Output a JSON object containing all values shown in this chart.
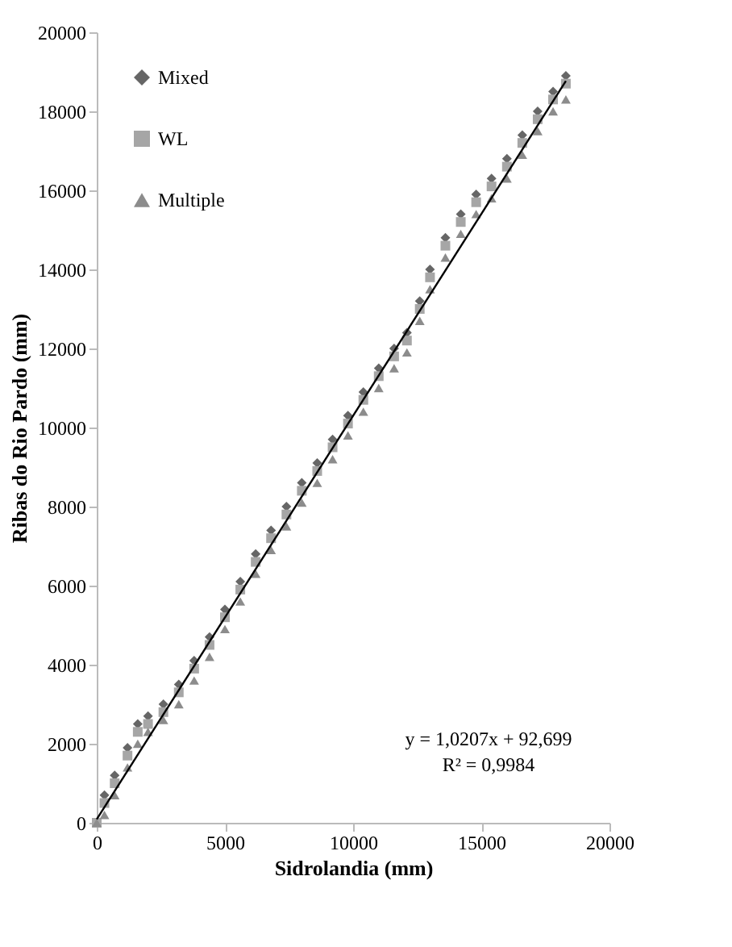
{
  "chart_data": {
    "type": "scatter",
    "xlabel": "Sidrolandia (mm)",
    "ylabel": "Ribas do Rio Pardo (mm)",
    "x": [
      0,
      300,
      700,
      1200,
      1600,
      2000,
      2600,
      3200,
      3800,
      4400,
      5000,
      5600,
      6200,
      6800,
      7400,
      8000,
      8600,
      9200,
      9800,
      10400,
      11000,
      11600,
      12100,
      12600,
      13000,
      13600,
      14200,
      14800,
      15400,
      16000,
      16600,
      17200,
      17800,
      18300
    ],
    "series": [
      {
        "name": "Mixed",
        "color": "#666666",
        "marker": "diamond",
        "values": [
          null,
          700,
          1200,
          1900,
          2500,
          2700,
          3000,
          3500,
          4100,
          4700,
          5400,
          6100,
          6800,
          7400,
          8000,
          8600,
          9100,
          9700,
          10300,
          10900,
          11500,
          12000,
          12400,
          13200,
          14000,
          14800,
          15400,
          15900,
          16300,
          16800,
          17400,
          18000,
          18500,
          18900
        ]
      },
      {
        "name": "WL",
        "color": "#a6a6a6",
        "marker": "square",
        "values": [
          0,
          500,
          1000,
          1700,
          2300,
          2500,
          2800,
          3300,
          3900,
          4500,
          5200,
          5900,
          6600,
          7200,
          7800,
          8400,
          8900,
          9500,
          10100,
          10700,
          11300,
          11800,
          12200,
          13000,
          13800,
          14600,
          15200,
          15700,
          16100,
          16600,
          17200,
          17800,
          18300,
          18700
        ]
      },
      {
        "name": "Multiple",
        "color": "#8c8c8c",
        "marker": "triangle",
        "values": [
          0,
          200,
          700,
          1400,
          2000,
          2300,
          2600,
          3000,
          3600,
          4200,
          4900,
          5600,
          6300,
          6900,
          7500,
          8100,
          8600,
          9200,
          9800,
          10400,
          11000,
          11500,
          11900,
          12700,
          13500,
          14300,
          14900,
          15400,
          15800,
          16300,
          16900,
          17500,
          18000,
          18300
        ]
      },
      {
        "type": "line",
        "color": "#000000",
        "x": [
          0,
          18300
        ],
        "values": [
          90,
          18770
        ]
      }
    ],
    "xlim": [
      0,
      20000
    ],
    "xticks": [
      0,
      5000,
      10000,
      15000,
      20000
    ],
    "ylim": [
      0,
      20000
    ],
    "yticks": [
      0,
      2000,
      4000,
      6000,
      8000,
      10000,
      12000,
      14000,
      16000,
      18000,
      20000
    ],
    "grid": false,
    "legend": "top left",
    "annotations": [
      "y = 1,0207x + 92,699",
      "R² = 0,9984"
    ]
  }
}
